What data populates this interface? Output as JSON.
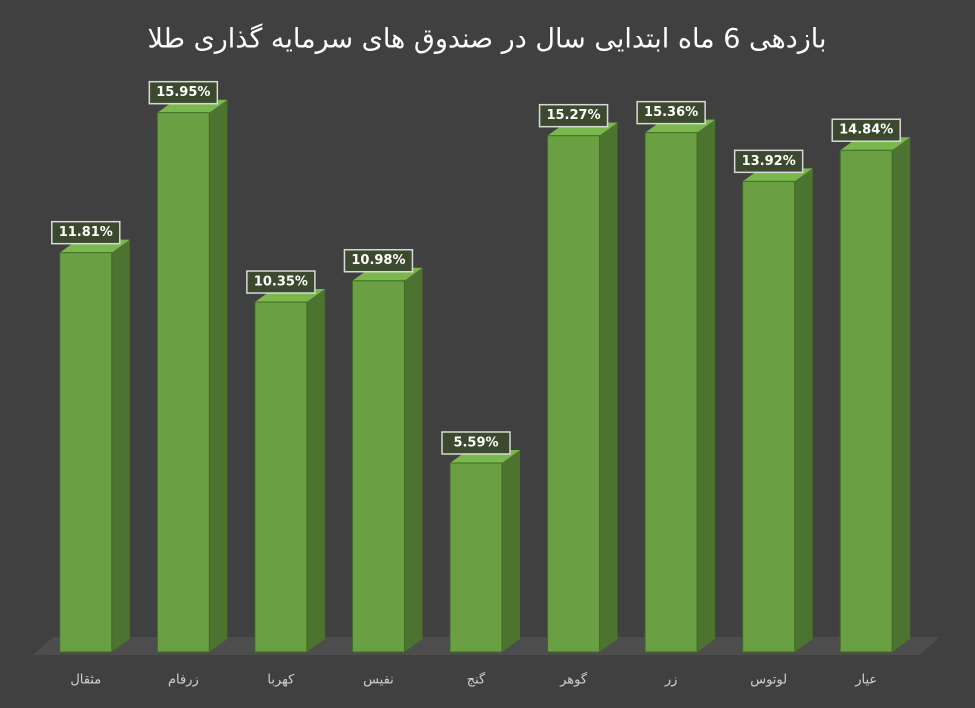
{
  "chart_data": {
    "type": "bar3d",
    "title": "بازدهی 6 ماه ابتدایی سال در صندوق های سرمایه گذاری طلا",
    "categories": [
      "مثقال",
      "زرفام",
      "کهربا",
      "نفیس",
      "گنج",
      "گوهر",
      "زر",
      "لوتوس",
      "عیار"
    ],
    "values": [
      11.81,
      15.95,
      10.35,
      10.98,
      5.59,
      15.27,
      15.36,
      13.92,
      14.84
    ],
    "value_labels": [
      "11.81%",
      "15.95%",
      "10.35%",
      "10.98%",
      "5.59%",
      "15.27%",
      "15.36%",
      "13.92%",
      "14.84%"
    ],
    "color": "#6aa043",
    "ylim": [
      0,
      16
    ]
  }
}
